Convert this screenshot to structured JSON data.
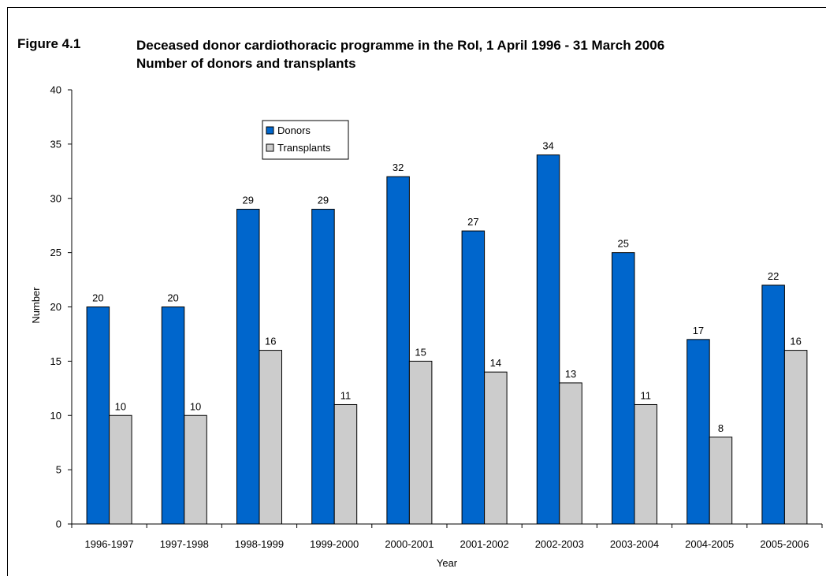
{
  "figure": {
    "label": "Figure 4.1",
    "title_lines": [
      "Deceased donor cardiothoracic programme in the RoI, 1 April 1996 - 31 March 2006",
      "Number of donors and transplants"
    ]
  },
  "colors": {
    "donors": "#0066CC",
    "transplants": "#CCCCCC",
    "outline": "#000000"
  },
  "chart_data": {
    "type": "bar",
    "title": "Deceased donor cardiothoracic programme in the RoI, 1 April 1996 - 31 March 2006",
    "subtitle": "Number of donors and transplants",
    "xlabel": "Year",
    "ylabel": "Number",
    "ylim": [
      0,
      40
    ],
    "yticks": [
      0,
      5,
      10,
      15,
      20,
      25,
      30,
      35,
      40
    ],
    "grid": false,
    "legend_position": "top-left",
    "categories": [
      "1996-1997",
      "1997-1998",
      "1998-1999",
      "1999-2000",
      "2000-2001",
      "2001-2002",
      "2002-2003",
      "2003-2004",
      "2004-2005",
      "2005-2006"
    ],
    "series": [
      {
        "name": "Donors",
        "values": [
          20,
          20,
          29,
          29,
          32,
          27,
          34,
          25,
          17,
          22
        ]
      },
      {
        "name": "Transplants",
        "values": [
          10,
          10,
          16,
          11,
          15,
          14,
          13,
          11,
          8,
          16
        ]
      }
    ]
  }
}
